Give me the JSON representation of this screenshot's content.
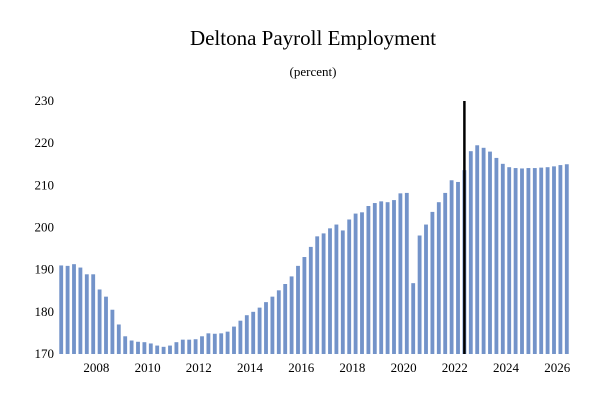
{
  "chart_data": {
    "type": "bar",
    "title": "Deltona Payroll Employment",
    "subtitle": "(percent)",
    "xlabel": "",
    "ylabel": "",
    "ylim": [
      170,
      230
    ],
    "yticks": [
      170,
      180,
      190,
      200,
      210,
      220,
      230
    ],
    "xtick_labels": [
      "2008",
      "2010",
      "2012",
      "2014",
      "2016",
      "2018",
      "2020",
      "2022",
      "2024",
      "2026"
    ],
    "grid": false,
    "bar_color": "#7393c9",
    "marker_color": "#000000",
    "marker_at": "2022 Q2",
    "series": [
      {
        "x": [
          "2006 Q3",
          "2006 Q4",
          "2007 Q1",
          "2007 Q2",
          "2007 Q3",
          "2007 Q4",
          "2008 Q1",
          "2008 Q2",
          "2008 Q3",
          "2008 Q4",
          "2009 Q1",
          "2009 Q2",
          "2009 Q3",
          "2009 Q4",
          "2010 Q1",
          "2010 Q2",
          "2010 Q3",
          "2010 Q4",
          "2011 Q1",
          "2011 Q2",
          "2011 Q3",
          "2011 Q4",
          "2012 Q1",
          "2012 Q2",
          "2012 Q3",
          "2012 Q4",
          "2013 Q1",
          "2013 Q2",
          "2013 Q3",
          "2013 Q4",
          "2014 Q1",
          "2014 Q2",
          "2014 Q3",
          "2014 Q4",
          "2015 Q1",
          "2015 Q2",
          "2015 Q3",
          "2015 Q4",
          "2016 Q1",
          "2016 Q2",
          "2016 Q3",
          "2016 Q4",
          "2017 Q1",
          "2017 Q2",
          "2017 Q3",
          "2017 Q4",
          "2018 Q1",
          "2018 Q2",
          "2018 Q3",
          "2018 Q4",
          "2019 Q1",
          "2019 Q2",
          "2019 Q3",
          "2019 Q4",
          "2020 Q1",
          "2020 Q2",
          "2020 Q3",
          "2020 Q4",
          "2021 Q1",
          "2021 Q2",
          "2021 Q3",
          "2021 Q4",
          "2022 Q1",
          "2022 Q2",
          "2022 Q3",
          "2022 Q4",
          "2023 Q1",
          "2023 Q2",
          "2023 Q3",
          "2023 Q4",
          "2024 Q1",
          "2024 Q2",
          "2024 Q3",
          "2024 Q4",
          "2025 Q1",
          "2025 Q2",
          "2025 Q3",
          "2025 Q4",
          "2026 Q1",
          "2026 Q2"
        ],
        "values": [
          191.0,
          190.9,
          191.3,
          190.5,
          188.9,
          188.9,
          185.3,
          183.6,
          180.5,
          177.0,
          174.2,
          173.2,
          172.9,
          172.8,
          172.5,
          172.0,
          171.7,
          172.0,
          172.8,
          173.4,
          173.4,
          173.5,
          174.2,
          174.9,
          174.8,
          174.9,
          175.3,
          176.5,
          177.9,
          179.2,
          180.0,
          181.0,
          182.3,
          183.6,
          185.1,
          186.6,
          188.4,
          190.9,
          193.0,
          195.4,
          197.9,
          198.6,
          199.8,
          200.7,
          199.3,
          201.9,
          203.3,
          203.6,
          205.1,
          205.8,
          206.2,
          206.0,
          206.5,
          208.1,
          208.2,
          186.8,
          198.1,
          200.7,
          203.7,
          206.0,
          208.2,
          211.2,
          210.8,
          213.6,
          218.1,
          219.5,
          218.9,
          218.0,
          216.5,
          215.1,
          214.3,
          214.1,
          214.0,
          214.1,
          214.1,
          214.2,
          214.3,
          214.5,
          214.8,
          215.0
        ]
      }
    ]
  }
}
